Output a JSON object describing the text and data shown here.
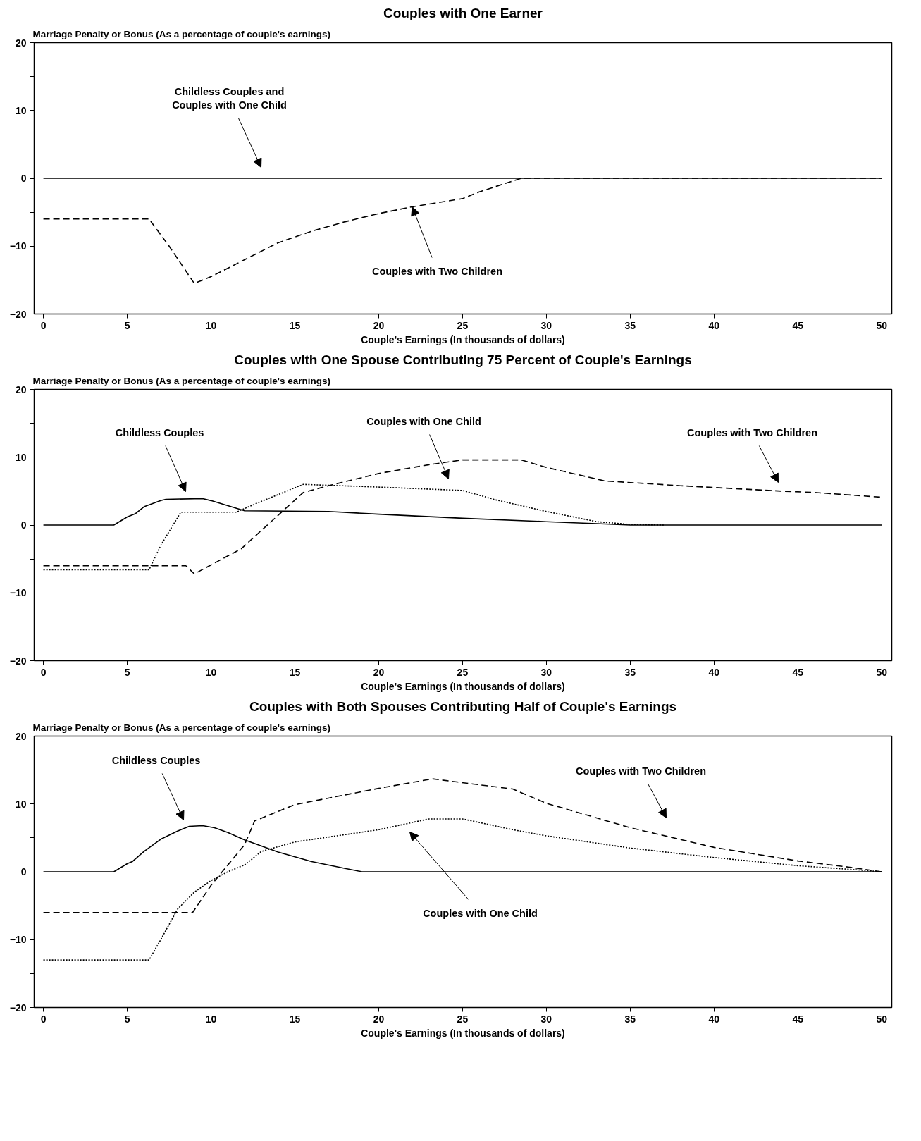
{
  "chart_data": [
    {
      "type": "line",
      "title": "Couples with One Earner",
      "ylabel": "Marriage Penalty or Bonus (As a percentage of couple's earnings)",
      "xlabel": "Couple's Earnings (In thousands of dollars)",
      "xlim": [
        -0.55,
        50.6
      ],
      "ylim": [
        -20,
        20
      ],
      "xticks": [
        0,
        5,
        10,
        15,
        20,
        25,
        30,
        35,
        40,
        45,
        50
      ],
      "yticks": [
        -20,
        {
          "value": -15,
          "label": null
        },
        -10,
        {
          "value": -5,
          "label": null
        },
        0,
        {
          "value": 5,
          "label": null
        },
        10,
        {
          "value": 15,
          "label": null
        },
        20
      ],
      "grid": false,
      "series": [
        {
          "color": "#000000",
          "line_style": "solid",
          "x": [
            0,
            50
          ],
          "values": [
            0,
            0
          ]
        },
        {
          "color": "#000000",
          "line_style": "dashed",
          "x": [
            0,
            6.3,
            7.5,
            9,
            10,
            12,
            14,
            16,
            18,
            20,
            22,
            24,
            25,
            26,
            28.5,
            50
          ],
          "values": [
            -6,
            -6,
            -10,
            -15.5,
            -14.5,
            -12,
            -9.5,
            -7.8,
            -6.4,
            -5.2,
            -4.2,
            -3.4,
            -3,
            -2,
            0,
            0
          ]
        }
      ],
      "annotations": [
        "Childless Couples and\nCouples with One Child",
        {
          "text": "Couples with Two Children",
          "x": 22,
          "y": -4.2
        }
      ]
    },
    {
      "type": "line",
      "title": "Couples with One Spouse Contributing 75 Percent of Couple's Earnings",
      "ylabel": "Marriage Penalty or Bonus (As a percentage of couple's earnings)",
      "xlabel": "Couple's Earnings (In thousands of dollars)",
      "xlim": [
        -0.55,
        50.6
      ],
      "ylim": [
        -20,
        20
      ],
      "xticks": [
        0,
        5,
        10,
        15,
        20,
        25,
        30,
        35,
        40,
        45,
        50
      ],
      "yticks": [
        -20,
        {
          "value": -15,
          "label": null
        },
        -10,
        {
          "value": -5,
          "label": null
        },
        0,
        {
          "value": 5,
          "label": null
        },
        10,
        {
          "value": 15,
          "label": null
        },
        20
      ],
      "grid": false,
      "series": [
        {
          "color": "#000000",
          "line_style": "solid",
          "x": [
            0,
            4.2,
            5,
            5.5,
            6,
            7,
            7.3,
            9.5,
            10,
            12,
            17,
            20,
            25,
            30,
            33,
            35,
            50
          ],
          "values": [
            0,
            0,
            1.2,
            1.7,
            2.7,
            3.6,
            3.8,
            3.9,
            3.6,
            2.1,
            2,
            1.6,
            1,
            0.5,
            0.2,
            0,
            0
          ]
        },
        {
          "color": "#000000",
          "line_style": "dotted",
          "x": [
            0,
            6.3,
            7,
            8.2,
            11.5,
            13,
            15.5,
            20,
            25,
            27,
            30,
            33,
            35,
            37
          ],
          "values": [
            -6.6,
            -6.6,
            -3,
            1.9,
            1.9,
            3.5,
            6,
            5.6,
            5.1,
            3.7,
            2,
            0.5,
            0.1,
            0
          ]
        },
        {
          "color": "#000000",
          "line_style": "dashed",
          "x": [
            0,
            8.5,
            9,
            11.8,
            13,
            15.5,
            17,
            20,
            23,
            25,
            28.5,
            30,
            33.5,
            38,
            44,
            46,
            50
          ],
          "values": [
            -6,
            -6,
            -7.2,
            -3.5,
            -0.8,
            4.8,
            5.8,
            7.6,
            8.9,
            9.6,
            9.6,
            8.5,
            6.5,
            5.8,
            5,
            4.8,
            4.1
          ]
        }
      ],
      "annotations": [
        "Childless Couples",
        "Couples with One Child",
        "Couples with Two Children"
      ]
    },
    {
      "type": "line",
      "title": "Couples with Both Spouses Contributing Half of Couple's Earnings",
      "ylabel": "Marriage Penalty or Bonus (As a percentage of couple's earnings)",
      "xlabel": "Couple's Earnings (In thousands of dollars)",
      "xlim": [
        -0.55,
        50.6
      ],
      "ylim": [
        -20,
        20
      ],
      "xticks": [
        0,
        5,
        10,
        15,
        20,
        25,
        30,
        35,
        40,
        45,
        50
      ],
      "yticks": [
        -20,
        {
          "value": -15,
          "label": null
        },
        -10,
        {
          "value": -5,
          "label": null
        },
        0,
        {
          "value": 5,
          "label": null
        },
        10,
        {
          "value": 15,
          "label": null
        },
        20
      ],
      "grid": false,
      "series": [
        {
          "color": "#000000",
          "line_style": "solid",
          "x": [
            0,
            4.2,
            5,
            5.3,
            6,
            7,
            8,
            8.7,
            9.5,
            10.2,
            11,
            12,
            14,
            16,
            18,
            19,
            50
          ],
          "values": [
            0,
            0,
            1.2,
            1.5,
            3,
            4.8,
            6,
            6.7,
            6.8,
            6.5,
            5.8,
            4.7,
            2.9,
            1.5,
            0.5,
            0,
            0
          ]
        },
        {
          "color": "#000000",
          "line_style": "dotted",
          "x": [
            0,
            6.3,
            7,
            8,
            9,
            10,
            11,
            12,
            13,
            15,
            20,
            23,
            25,
            28,
            30,
            35,
            40,
            45,
            49,
            50
          ],
          "values": [
            -13,
            -13,
            -10,
            -5.5,
            -3,
            -1.3,
            0,
            1,
            3,
            4.4,
            6.2,
            7.8,
            7.8,
            6.2,
            5.3,
            3.5,
            2.1,
            0.9,
            0.2,
            0
          ]
        },
        {
          "color": "#000000",
          "line_style": "dashed",
          "x": [
            0,
            8.9,
            10,
            11,
            12,
            12.6,
            15,
            20,
            23.2,
            28,
            30,
            35,
            40,
            45,
            48,
            50
          ],
          "values": [
            -6,
            -6,
            -2,
            1,
            4,
            7.5,
            9.9,
            12.3,
            13.7,
            12.2,
            10.1,
            6.5,
            3.6,
            1.6,
            0.7,
            0
          ]
        }
      ],
      "annotations": [
        "Childless Couples",
        "Couples with Two Children",
        "Couples with One Child"
      ]
    }
  ]
}
